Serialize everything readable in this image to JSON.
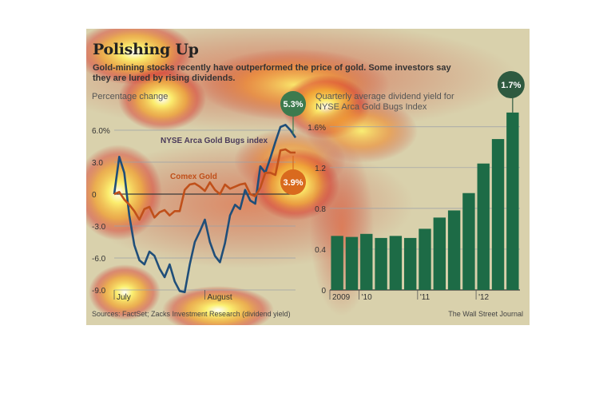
{
  "title": "Polishing Up",
  "subtitle": "Gold-mining stocks recently have outperformed the price of gold. Some investors say they are lured by rising dividends.",
  "sources": "Sources: FactSet; Zacks Investment Research (dividend yield)",
  "credit": "The Wall Street Journal",
  "colors": {
    "bugs_line": "#1f4e79",
    "gold_line": "#c0501a",
    "bars": "#1d6b46",
    "callout_bugs": "#3c7a4e",
    "callout_gold": "#d96a1e",
    "callout_dividend": "#2f5a40",
    "background": "#d9d1ac"
  },
  "chart_data": [
    {
      "type": "line",
      "ylabel": "Percentage change",
      "ylim": [
        -9.0,
        6.0
      ],
      "y_ticks": [
        {
          "value": 6.0,
          "label": "6.0%"
        },
        {
          "value": 3.0,
          "label": "3.0"
        },
        {
          "value": 0,
          "label": "0"
        },
        {
          "value": -3.0,
          "label": "-3.0"
        },
        {
          "value": -6.0,
          "label": "-6.0"
        },
        {
          "value": -9.0,
          "label": "-9.0"
        }
      ],
      "x_ticks": [
        "July",
        "August"
      ],
      "grid": true,
      "series": [
        {
          "name": "NYSE Arca Gold Bugs index",
          "color_key": "bugs_line",
          "end_label": "5.3%",
          "values": [
            0,
            3.5,
            2.0,
            -2.0,
            -4.8,
            -6.2,
            -6.6,
            -5.4,
            -5.8,
            -7.0,
            -7.8,
            -6.6,
            -8.2,
            -9.1,
            -9.2,
            -6.6,
            -4.5,
            -3.5,
            -2.4,
            -4.5,
            -5.8,
            -6.4,
            -4.6,
            -2.0,
            -1.0,
            -1.4,
            0.4,
            -0.6,
            -0.9,
            2.6,
            2.0,
            3.4,
            4.9,
            6.3,
            6.5,
            6.0,
            5.3
          ]
        },
        {
          "name": "Comex Gold",
          "color_key": "gold_line",
          "end_label": "3.9%",
          "values": [
            0,
            0.2,
            -0.5,
            -1.0,
            -1.6,
            -2.4,
            -1.4,
            -1.2,
            -2.2,
            -1.7,
            -1.5,
            -2.0,
            -1.6,
            -1.6,
            0.4,
            0.9,
            1.0,
            0.7,
            0.3,
            1.1,
            0.4,
            0.0,
            0.9,
            0.5,
            0.7,
            0.9,
            1.0,
            0.0,
            -0.2,
            0.6,
            2.0,
            2.0,
            1.8,
            4.1,
            4.2,
            3.9,
            3.9
          ]
        }
      ]
    },
    {
      "type": "bar",
      "title": "Quarterly average dividend yield for NYSE Arca Gold Bugs Index",
      "ylim": [
        0,
        1.7
      ],
      "y_ticks": [
        {
          "value": 0,
          "label": "0"
        },
        {
          "value": 0.4,
          "label": "0.4"
        },
        {
          "value": 0.8,
          "label": "0.8"
        },
        {
          "value": 1.2,
          "label": "1.2"
        },
        {
          "value": 1.6,
          "label": "1.6%"
        }
      ],
      "x_ticks": [
        {
          "index": 0,
          "label": "2009"
        },
        {
          "index": 2,
          "label": "'10"
        },
        {
          "index": 6,
          "label": "'11"
        },
        {
          "index": 10,
          "label": "'12"
        }
      ],
      "values": [
        0.53,
        0.52,
        0.55,
        0.51,
        0.53,
        0.51,
        0.6,
        0.71,
        0.78,
        0.95,
        1.24,
        1.48,
        1.74
      ],
      "end_label": "1.7%"
    }
  ]
}
